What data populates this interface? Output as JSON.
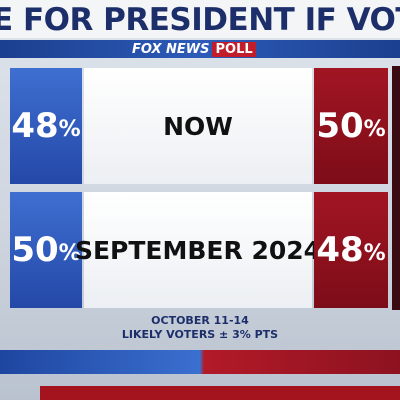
{
  "header": {
    "title": "E FOR PRESIDENT IF VOTING",
    "logo": {
      "brand": "FOX NEWS",
      "tag": "POLL"
    }
  },
  "rows": [
    {
      "left": {
        "number": "48",
        "unit": "%"
      },
      "label": "NOW",
      "right": {
        "number": "50",
        "unit": "%"
      }
    },
    {
      "left": {
        "number": "50",
        "unit": "%"
      },
      "label": "SEPTEMBER 2024",
      "right": {
        "number": "48",
        "unit": "%"
      }
    }
  ],
  "footer": {
    "date": "OCTOBER 11-14",
    "note": "LIKELY VOTERS ± 3% PTS"
  }
}
